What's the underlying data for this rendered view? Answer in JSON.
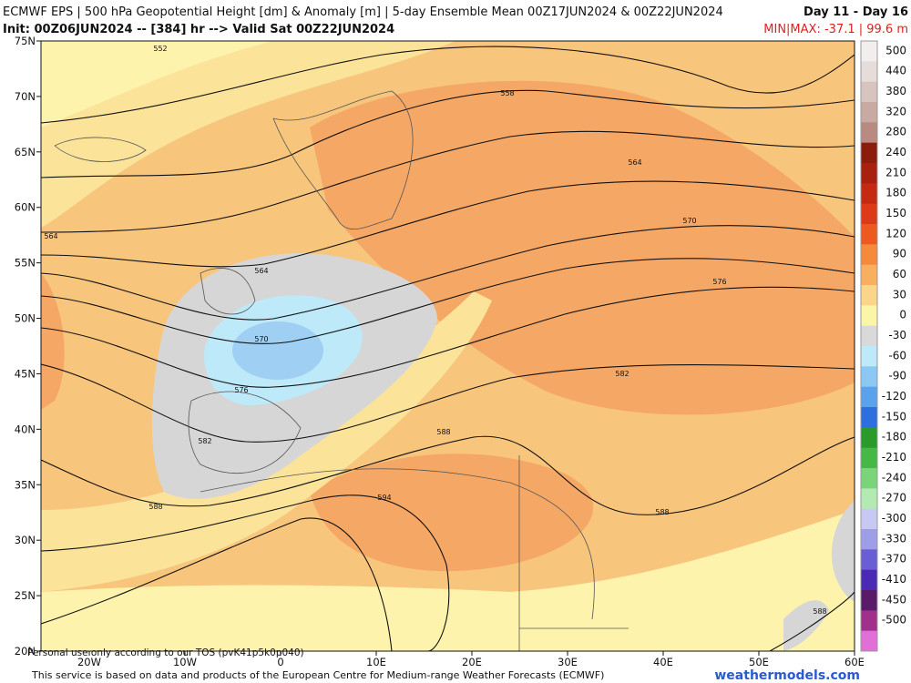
{
  "header": {
    "title": "ECMWF EPS | 500 hPa Geopotential Height [dm] & Anomaly [m] | 5-day Ensemble Mean 00Z17JUN2024 & 00Z22JUN2024",
    "period": "Day 11 - Day 16",
    "init": "Init: 00Z06JUN2024 -- [384] hr --> Valid Sat 00Z22JUN2024",
    "minmax": "MIN|MAX: -37.1 | 99.6 m"
  },
  "map": {
    "latitude_labels": [
      "75N",
      "70N",
      "65N",
      "60N",
      "55N",
      "50N",
      "45N",
      "40N",
      "35N",
      "30N",
      "25N",
      "20N"
    ],
    "longitude_labels": [
      "20W",
      "10W",
      "0",
      "10E",
      "20E",
      "30E",
      "40E",
      "50E",
      "60E"
    ],
    "contour_labels": [
      "552",
      "564",
      "564",
      "570",
      "576",
      "582",
      "588",
      "594",
      "588",
      "582",
      "576",
      "570",
      "564",
      "558",
      "588",
      "588"
    ],
    "watermark": "Personal use only according to our TOS (pvK41p5k0p040)"
  },
  "colorbar": {
    "levels": [
      {
        "label": "500",
        "color": "#f2eeee"
      },
      {
        "label": "440",
        "color": "#e6dcda"
      },
      {
        "label": "380",
        "color": "#d8c4bf"
      },
      {
        "label": "320",
        "color": "#c9aaa2"
      },
      {
        "label": "280",
        "color": "#b98b80"
      },
      {
        "label": "240",
        "color": "#8c1c0c"
      },
      {
        "label": "210",
        "color": "#a8200e"
      },
      {
        "label": "180",
        "color": "#c42a12"
      },
      {
        "label": "150",
        "color": "#dc3a18"
      },
      {
        "label": "120",
        "color": "#ec5a22"
      },
      {
        "label": "90",
        "color": "#f58a3a"
      },
      {
        "label": "60",
        "color": "#f8b060"
      },
      {
        "label": "30",
        "color": "#fbd589"
      },
      {
        "label": "0",
        "color": "#fbf5a8"
      },
      {
        "label": "-30",
        "color": "#d9d9d9"
      },
      {
        "label": "-60",
        "color": "#bde9f8"
      },
      {
        "label": "-90",
        "color": "#8cc8f4"
      },
      {
        "label": "-120",
        "color": "#5aa2ec"
      },
      {
        "label": "-150",
        "color": "#2e6fe0"
      },
      {
        "label": "-180",
        "color": "#2a9a2a"
      },
      {
        "label": "-210",
        "color": "#46b846"
      },
      {
        "label": "-240",
        "color": "#7ad47a"
      },
      {
        "label": "-270",
        "color": "#b2eab2"
      },
      {
        "label": "-300",
        "color": "#c8c8f4"
      },
      {
        "label": "-330",
        "color": "#9e9ee8"
      },
      {
        "label": "-370",
        "color": "#6a5ed4"
      },
      {
        "label": "-410",
        "color": "#4a2ab4"
      },
      {
        "label": "-450",
        "color": "#5a1a6a"
      },
      {
        "label": "-500",
        "color": "#a0308a"
      },
      {
        "label": "",
        "color": "#e070d8"
      }
    ]
  },
  "footer": {
    "credit": "This service is based on data and products of the European Centre for Medium-range Weather Forecasts (ECMWF)",
    "site": "weathermodels.com"
  }
}
